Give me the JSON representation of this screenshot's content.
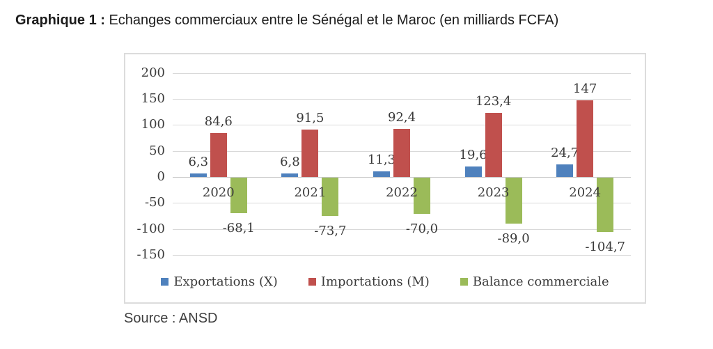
{
  "title": {
    "prefix": "Graphique 1 :",
    "text": " Echanges commerciaux entre le Sénégal et le Maroc (en milliards FCFA)"
  },
  "source": "Source : ANSD",
  "colors": {
    "exportations": "#4F81BD",
    "importations": "#C0504D",
    "balance": "#9BBB59",
    "gridline": "#D9D9D9"
  },
  "chart_data": {
    "type": "bar",
    "title": "Echanges commerciaux entre le Sénégal et le Maroc (en milliards FCFA)",
    "categories": [
      "2020",
      "2021",
      "2022",
      "2023",
      "2024"
    ],
    "series": [
      {
        "name": "Exportations (X)",
        "color": "#4F81BD",
        "values": [
          6.3,
          6.8,
          11.3,
          19.6,
          24.7
        ],
        "labels": [
          "6,3",
          "6,8",
          "11,3",
          "19,6",
          "24,7"
        ]
      },
      {
        "name": "Importations (M)",
        "color": "#C0504D",
        "values": [
          84.6,
          91.5,
          92.4,
          123.4,
          147
        ],
        "labels": [
          "84,6",
          "91,5",
          "92,4",
          "123,4",
          "147"
        ]
      },
      {
        "name": "Balance commerciale",
        "color": "#9BBB59",
        "values": [
          -68.1,
          -73.7,
          -70.0,
          -89.0,
          -104.7
        ],
        "labels": [
          "-68,1",
          "-73,7",
          "-70,0",
          "-89,0",
          "-104,7"
        ]
      }
    ],
    "y_axis": {
      "min": -150,
      "max": 200,
      "step": 50,
      "ticks": [
        "200",
        "150",
        "100",
        "50",
        "0",
        "-50",
        "-100",
        "-150"
      ]
    },
    "grid": true,
    "legend_position": "bottom",
    "data_labels": true
  }
}
